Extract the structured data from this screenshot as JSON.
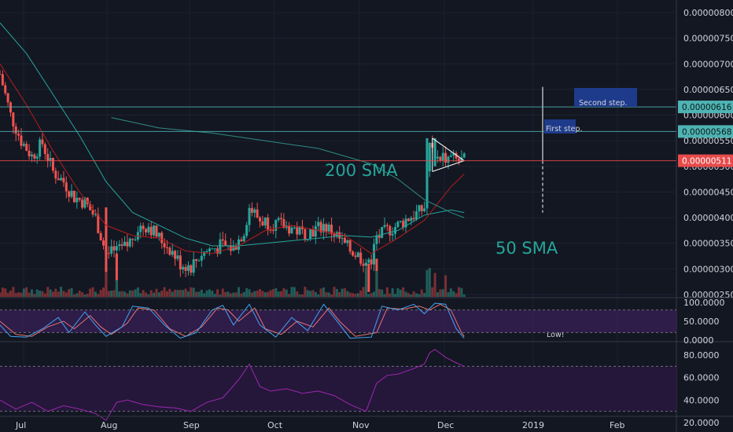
{
  "chart_data": {
    "type": "candlestick",
    "price_axis": {
      "ticks": [
        "0.00000800",
        "0.00000750",
        "0.00000700",
        "0.00000650",
        "0.00000600",
        "0.00000550",
        "0.00000500",
        "0.00000450",
        "0.00000400",
        "0.00000350",
        "0.00000300",
        "0.00000250"
      ],
      "range": [
        2.45e-06,
        8.1e-06
      ]
    },
    "x_axis": {
      "labels": [
        "Jul",
        "Aug",
        "Sep",
        "Oct",
        "Nov",
        "Dec",
        "2019",
        "Feb"
      ]
    },
    "close_series": [
      {
        "t": 0,
        "v": 0.00068
      },
      {
        "t": 4,
        "v": 0.0006
      },
      {
        "t": 8,
        "v": 0.00055
      },
      {
        "t": 12,
        "v": 0.00052
      },
      {
        "t": 16,
        "v": 0.000545
      },
      {
        "t": 20,
        "v": 0.00049
      },
      {
        "t": 24,
        "v": 0.00047
      },
      {
        "t": 28,
        "v": 0.00044
      },
      {
        "t": 32,
        "v": 0.00043
      },
      {
        "t": 36,
        "v": 0.0004
      },
      {
        "t": 40,
        "v": 0.00033
      },
      {
        "t": 44,
        "v": 0.00033
      },
      {
        "t": 48,
        "v": 0.000345
      },
      {
        "t": 52,
        "v": 0.00038
      },
      {
        "t": 56,
        "v": 0.000385
      },
      {
        "t": 60,
        "v": 0.00036
      },
      {
        "t": 64,
        "v": 0.00034
      },
      {
        "t": 68,
        "v": 0.00031
      },
      {
        "t": 72,
        "v": 0.000305
      },
      {
        "t": 76,
        "v": 0.00033
      },
      {
        "t": 80,
        "v": 0.00034
      },
      {
        "t": 84,
        "v": 0.000345
      },
      {
        "t": 88,
        "v": 0.00034
      },
      {
        "t": 92,
        "v": 0.000375
      },
      {
        "t": 94,
        "v": 0.00042
      },
      {
        "t": 98,
        "v": 0.000395
      },
      {
        "t": 102,
        "v": 0.00039
      },
      {
        "t": 106,
        "v": 0.000385
      },
      {
        "t": 110,
        "v": 0.00038
      },
      {
        "t": 114,
        "v": 0.00037
      },
      {
        "t": 118,
        "v": 0.000375
      },
      {
        "t": 122,
        "v": 0.000385
      },
      {
        "t": 126,
        "v": 0.00037
      },
      {
        "t": 130,
        "v": 0.000345
      },
      {
        "t": 134,
        "v": 0.00033
      },
      {
        "t": 138,
        "v": 0.000315
      },
      {
        "t": 140,
        "v": 0.00032
      },
      {
        "t": 142,
        "v": 0.00036
      },
      {
        "t": 146,
        "v": 0.000375
      },
      {
        "t": 150,
        "v": 0.000385
      },
      {
        "t": 154,
        "v": 0.0004
      },
      {
        "t": 158,
        "v": 0.00041
      },
      {
        "t": 160,
        "v": 0.00042
      },
      {
        "t": 161,
        "v": 0.00049
      },
      {
        "t": 162,
        "v": 0.00054
      },
      {
        "t": 164,
        "v": 0.000525
      },
      {
        "t": 167,
        "v": 0.00052
      },
      {
        "t": 170,
        "v": 0.000515
      },
      {
        "t": 173,
        "v": 0.00051
      },
      {
        "t": 175,
        "v": 0.000511
      }
    ],
    "sma50": [
      {
        "t": 0,
        "v": 0.00078
      },
      {
        "t": 10,
        "v": 0.00072
      },
      {
        "t": 20,
        "v": 0.00064
      },
      {
        "t": 30,
        "v": 0.00056
      },
      {
        "t": 40,
        "v": 0.00047
      },
      {
        "t": 50,
        "v": 0.00041
      },
      {
        "t": 60,
        "v": 0.000385
      },
      {
        "t": 70,
        "v": 0.00036
      },
      {
        "t": 80,
        "v": 0.000345
      },
      {
        "t": 90,
        "v": 0.000345
      },
      {
        "t": 100,
        "v": 0.00035
      },
      {
        "t": 110,
        "v": 0.000355
      },
      {
        "t": 120,
        "v": 0.00036
      },
      {
        "t": 130,
        "v": 0.000365
      },
      {
        "t": 140,
        "v": 0.000362
      },
      {
        "t": 150,
        "v": 0.000375
      },
      {
        "t": 160,
        "v": 0.000405
      },
      {
        "t": 170,
        "v": 0.000415
      },
      {
        "t": 175,
        "v": 0.00041
      }
    ],
    "sma20": [
      {
        "t": 0,
        "v": 0.0007
      },
      {
        "t": 10,
        "v": 0.00062
      },
      {
        "t": 20,
        "v": 0.00053
      },
      {
        "t": 30,
        "v": 0.00045
      },
      {
        "t": 40,
        "v": 0.000385
      },
      {
        "t": 50,
        "v": 0.000365
      },
      {
        "t": 60,
        "v": 0.00036
      },
      {
        "t": 70,
        "v": 0.000335
      },
      {
        "t": 80,
        "v": 0.00033
      },
      {
        "t": 90,
        "v": 0.000345
      },
      {
        "t": 100,
        "v": 0.000375
      },
      {
        "t": 110,
        "v": 0.000385
      },
      {
        "t": 120,
        "v": 0.000375
      },
      {
        "t": 130,
        "v": 0.000365
      },
      {
        "t": 140,
        "v": 0.00033
      },
      {
        "t": 150,
        "v": 0.00036
      },
      {
        "t": 160,
        "v": 0.000395
      },
      {
        "t": 170,
        "v": 0.00046
      },
      {
        "t": 175,
        "v": 0.000485
      }
    ],
    "sma200": [
      {
        "t": 42,
        "v": 0.000595
      },
      {
        "t": 60,
        "v": 0.000575
      },
      {
        "t": 80,
        "v": 0.000565
      },
      {
        "t": 100,
        "v": 0.00055
      },
      {
        "t": 120,
        "v": 0.000535
      },
      {
        "t": 140,
        "v": 0.000505
      },
      {
        "t": 150,
        "v": 0.000475
      },
      {
        "t": 160,
        "v": 0.000435
      },
      {
        "t": 170,
        "v": 0.00041
      },
      {
        "t": 175,
        "v": 0.0004
      }
    ],
    "horizontal_levels": [
      {
        "value": 6.16e-06,
        "label": "0.00000616",
        "color": "#4fb3b3"
      },
      {
        "value": 5.68e-06,
        "label": "0.00000568",
        "color": "#4fb3b3"
      },
      {
        "value": 5.11e-06,
        "label": "0.00000511",
        "color": "#e84b4b"
      }
    ],
    "annotations": [
      {
        "text": "200 SMA",
        "color": "#26a69a"
      },
      {
        "text": "50 SMA",
        "color": "#26a69a"
      },
      {
        "text": "First step.",
        "color": "#1e3a8a"
      },
      {
        "text": "Second step.",
        "color": "#1e3a8a"
      },
      {
        "text": "Low!",
        "color": "#d1d4dc"
      }
    ],
    "stoch_rsi": {
      "ticks": [
        "100.0000",
        "50.0000",
        "0.0000"
      ],
      "k": [
        {
          "t": 0,
          "v": 40
        },
        {
          "t": 4,
          "v": 10
        },
        {
          "t": 10,
          "v": 8
        },
        {
          "t": 16,
          "v": 30
        },
        {
          "t": 22,
          "v": 60
        },
        {
          "t": 26,
          "v": 20
        },
        {
          "t": 32,
          "v": 75
        },
        {
          "t": 36,
          "v": 40
        },
        {
          "t": 40,
          "v": 10
        },
        {
          "t": 46,
          "v": 35
        },
        {
          "t": 50,
          "v": 90
        },
        {
          "t": 56,
          "v": 85
        },
        {
          "t": 62,
          "v": 40
        },
        {
          "t": 68,
          "v": 5
        },
        {
          "t": 74,
          "v": 20
        },
        {
          "t": 80,
          "v": 80
        },
        {
          "t": 84,
          "v": 92
        },
        {
          "t": 88,
          "v": 40
        },
        {
          "t": 94,
          "v": 95
        },
        {
          "t": 98,
          "v": 40
        },
        {
          "t": 104,
          "v": 8
        },
        {
          "t": 110,
          "v": 60
        },
        {
          "t": 116,
          "v": 25
        },
        {
          "t": 122,
          "v": 95
        },
        {
          "t": 126,
          "v": 60
        },
        {
          "t": 132,
          "v": 5
        },
        {
          "t": 140,
          "v": 8
        },
        {
          "t": 144,
          "v": 90
        },
        {
          "t": 150,
          "v": 80
        },
        {
          "t": 156,
          "v": 95
        },
        {
          "t": 160,
          "v": 70
        },
        {
          "t": 164,
          "v": 98
        },
        {
          "t": 168,
          "v": 95
        },
        {
          "t": 172,
          "v": 30
        },
        {
          "t": 175,
          "v": 5
        }
      ],
      "d": [
        {
          "t": 0,
          "v": 50
        },
        {
          "t": 6,
          "v": 15
        },
        {
          "t": 12,
          "v": 10
        },
        {
          "t": 18,
          "v": 35
        },
        {
          "t": 24,
          "v": 50
        },
        {
          "t": 28,
          "v": 30
        },
        {
          "t": 34,
          "v": 65
        },
        {
          "t": 38,
          "v": 35
        },
        {
          "t": 42,
          "v": 15
        },
        {
          "t": 48,
          "v": 45
        },
        {
          "t": 52,
          "v": 85
        },
        {
          "t": 58,
          "v": 80
        },
        {
          "t": 64,
          "v": 30
        },
        {
          "t": 70,
          "v": 10
        },
        {
          "t": 76,
          "v": 35
        },
        {
          "t": 82,
          "v": 85
        },
        {
          "t": 86,
          "v": 80
        },
        {
          "t": 90,
          "v": 50
        },
        {
          "t": 96,
          "v": 85
        },
        {
          "t": 100,
          "v": 30
        },
        {
          "t": 106,
          "v": 15
        },
        {
          "t": 112,
          "v": 50
        },
        {
          "t": 118,
          "v": 35
        },
        {
          "t": 124,
          "v": 85
        },
        {
          "t": 128,
          "v": 50
        },
        {
          "t": 134,
          "v": 10
        },
        {
          "t": 142,
          "v": 20
        },
        {
          "t": 146,
          "v": 85
        },
        {
          "t": 152,
          "v": 82
        },
        {
          "t": 158,
          "v": 90
        },
        {
          "t": 162,
          "v": 80
        },
        {
          "t": 166,
          "v": 95
        },
        {
          "t": 170,
          "v": 80
        },
        {
          "t": 174,
          "v": 20
        },
        {
          "t": 175,
          "v": 10
        }
      ]
    },
    "rsi": {
      "ticks": [
        "80.0000",
        "60.0000",
        "40.0000",
        "20.0000"
      ],
      "values": [
        {
          "t": 0,
          "v": 40
        },
        {
          "t": 6,
          "v": 32
        },
        {
          "t": 12,
          "v": 38
        },
        {
          "t": 18,
          "v": 30
        },
        {
          "t": 24,
          "v": 35
        },
        {
          "t": 30,
          "v": 32
        },
        {
          "t": 36,
          "v": 28
        },
        {
          "t": 40,
          "v": 22
        },
        {
          "t": 44,
          "v": 38
        },
        {
          "t": 48,
          "v": 40
        },
        {
          "t": 54,
          "v": 36
        },
        {
          "t": 60,
          "v": 34
        },
        {
          "t": 66,
          "v": 33
        },
        {
          "t": 72,
          "v": 30
        },
        {
          "t": 78,
          "v": 38
        },
        {
          "t": 84,
          "v": 42
        },
        {
          "t": 90,
          "v": 58
        },
        {
          "t": 94,
          "v": 72
        },
        {
          "t": 98,
          "v": 52
        },
        {
          "t": 102,
          "v": 48
        },
        {
          "t": 108,
          "v": 50
        },
        {
          "t": 114,
          "v": 46
        },
        {
          "t": 120,
          "v": 48
        },
        {
          "t": 126,
          "v": 44
        },
        {
          "t": 132,
          "v": 36
        },
        {
          "t": 138,
          "v": 30
        },
        {
          "t": 142,
          "v": 55
        },
        {
          "t": 146,
          "v": 62
        },
        {
          "t": 150,
          "v": 63
        },
        {
          "t": 156,
          "v": 68
        },
        {
          "t": 160,
          "v": 72
        },
        {
          "t": 162,
          "v": 82
        },
        {
          "t": 164,
          "v": 85
        },
        {
          "t": 168,
          "v": 78
        },
        {
          "t": 172,
          "v": 73
        },
        {
          "t": 175,
          "v": 70
        }
      ]
    }
  }
}
